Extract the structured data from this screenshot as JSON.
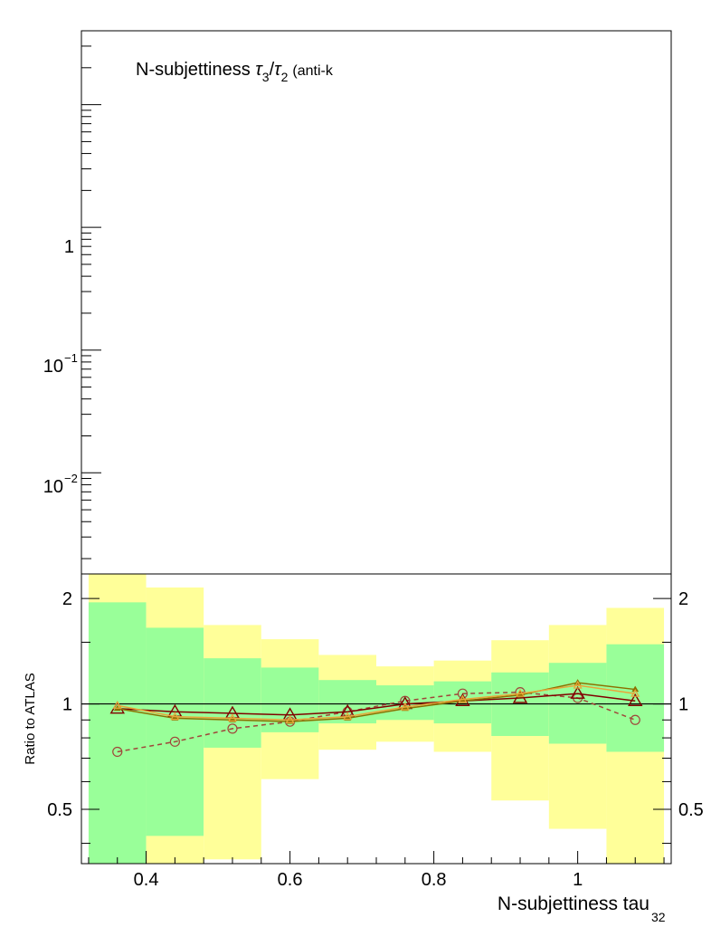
{
  "chart_data": [
    {
      "type": "line",
      "panel": "main",
      "title_prefix": "N-subjettiness ",
      "title_tau_num": "τ",
      "title_tau_num_sub": "3",
      "title_slash": "/",
      "title_tau_den": "τ",
      "title_tau_den_sub": "2",
      "title_suffix": "(anti-k",
      "yscale": "log",
      "ylim": [
        0.0015,
        40
      ],
      "xlim": [
        0.31,
        1.13
      ],
      "y_tick_labels": [
        {
          "value": 1,
          "base": "1",
          "exp": ""
        },
        {
          "value": 0.1,
          "base": "10",
          "exp": "−1"
        },
        {
          "value": 0.01,
          "base": "10",
          "exp": "−2"
        }
      ]
    },
    {
      "type": "line",
      "panel": "ratio",
      "xlabel_main": "N-subjettiness tau",
      "xlabel_sub": "32",
      "ylabel": "Ratio to ATLAS",
      "xlim": [
        0.31,
        1.13
      ],
      "ylim": [
        0.35,
        2.35
      ],
      "yscale": "log",
      "x_ticks": [
        "0.4",
        "0.6",
        "0.8",
        "1"
      ],
      "x_tick_values": [
        0.4,
        0.6,
        0.8,
        1.0
      ],
      "y_ticks": [
        "0.5",
        "1",
        "2"
      ],
      "y_tick_values": [
        0.5,
        1,
        2
      ],
      "reference_line": 1,
      "bins": [
        {
          "lo": 0.32,
          "hi": 0.4,
          "green_lo": 0.3,
          "green_hi": 1.95,
          "yellow_lo": 0.3,
          "yellow_hi": 2.4
        },
        {
          "lo": 0.4,
          "hi": 0.48,
          "green_lo": 0.42,
          "green_hi": 1.65,
          "yellow_lo": 0.3,
          "yellow_hi": 2.15
        },
        {
          "lo": 0.48,
          "hi": 0.56,
          "green_lo": 0.75,
          "green_hi": 1.35,
          "yellow_lo": 0.36,
          "yellow_hi": 1.68
        },
        {
          "lo": 0.56,
          "hi": 0.64,
          "green_lo": 0.83,
          "green_hi": 1.27,
          "yellow_lo": 0.61,
          "yellow_hi": 1.53
        },
        {
          "lo": 0.64,
          "hi": 0.72,
          "green_lo": 0.88,
          "green_hi": 1.17,
          "yellow_lo": 0.74,
          "yellow_hi": 1.38
        },
        {
          "lo": 0.72,
          "hi": 0.8,
          "green_lo": 0.9,
          "green_hi": 1.13,
          "yellow_lo": 0.78,
          "yellow_hi": 1.28
        },
        {
          "lo": 0.8,
          "hi": 0.88,
          "green_lo": 0.88,
          "green_hi": 1.16,
          "yellow_lo": 0.73,
          "yellow_hi": 1.33
        },
        {
          "lo": 0.88,
          "hi": 0.96,
          "green_lo": 0.81,
          "green_hi": 1.23,
          "yellow_lo": 0.53,
          "yellow_hi": 1.52
        },
        {
          "lo": 0.96,
          "hi": 1.04,
          "green_lo": 0.77,
          "green_hi": 1.31,
          "yellow_lo": 0.44,
          "yellow_hi": 1.68
        },
        {
          "lo": 1.04,
          "hi": 1.12,
          "green_lo": 0.73,
          "green_hi": 1.48,
          "yellow_lo": 0.3,
          "yellow_hi": 1.88
        }
      ],
      "series": [
        {
          "style": "dashed-circles",
          "color": "#a0463a",
          "x": [
            0.36,
            0.44,
            0.52,
            0.6,
            0.68,
            0.76,
            0.84,
            0.92,
            1.0,
            1.08
          ],
          "y": [
            0.73,
            0.78,
            0.85,
            0.89,
            0.95,
            1.02,
            1.07,
            1.08,
            1.04,
            0.9
          ]
        },
        {
          "style": "line-open-triangles",
          "color": "#800000",
          "x": [
            0.36,
            0.44,
            0.52,
            0.6,
            0.68,
            0.76,
            0.84,
            0.92,
            1.0,
            1.08
          ],
          "y": [
            0.97,
            0.95,
            0.94,
            0.93,
            0.95,
            1.0,
            1.02,
            1.04,
            1.07,
            1.02
          ]
        },
        {
          "style": "line-filled-triangles",
          "color": "#8b7000",
          "x": [
            0.36,
            0.44,
            0.52,
            0.6,
            0.68,
            0.76,
            0.84,
            0.92,
            1.0,
            1.08
          ],
          "y": [
            0.97,
            0.91,
            0.9,
            0.89,
            0.91,
            0.97,
            1.02,
            1.06,
            1.15,
            1.1
          ]
        },
        {
          "style": "line-open-triangles-light",
          "color": "#e8a63a",
          "x": [
            0.36,
            0.44,
            0.52,
            0.6,
            0.68,
            0.76,
            0.84,
            0.92,
            1.0,
            1.08
          ],
          "y": [
            0.99,
            0.92,
            0.91,
            0.9,
            0.92,
            0.98,
            1.03,
            1.07,
            1.13,
            1.07
          ]
        }
      ]
    }
  ]
}
